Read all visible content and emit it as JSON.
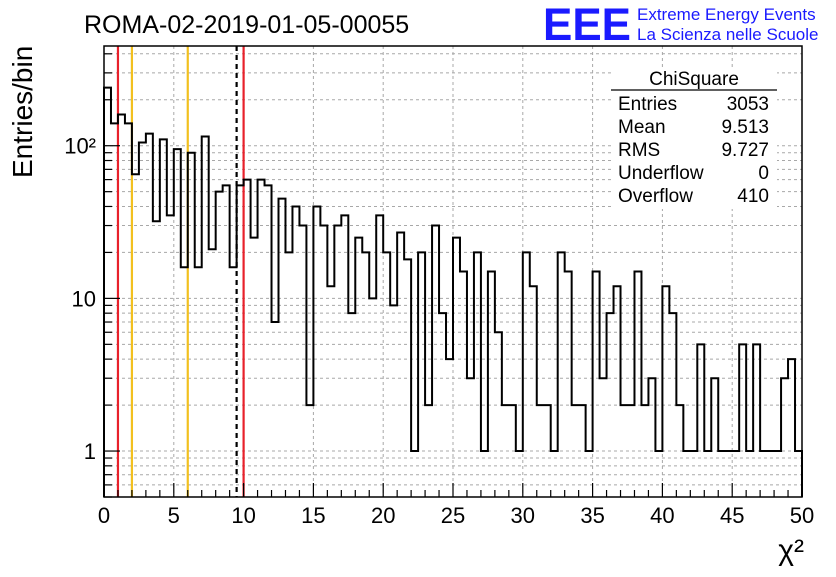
{
  "header": {
    "run_title": "ROMA-02-2019-01-05-00055",
    "logo_text": "EEE",
    "logo_line1": "Extreme Energy Events",
    "logo_line2": "La Scienza nelle Scuole",
    "logo_color": "#1a1aff"
  },
  "stats_box": {
    "title": "ChiSquare",
    "rows": [
      {
        "label": "Entries",
        "value": "3053"
      },
      {
        "label": "Mean",
        "value": "9.513"
      },
      {
        "label": "RMS",
        "value": "9.727"
      },
      {
        "label": "Underflow",
        "value": "0"
      },
      {
        "label": "Overflow",
        "value": "410"
      }
    ]
  },
  "chart_data": {
    "type": "histogram",
    "title": "ROMA-02-2019-01-05-00055",
    "xlabel": "χ²",
    "ylabel": "Entries/bin",
    "xlim": [
      0,
      50
    ],
    "ylim": [
      0.5,
      450
    ],
    "y_scale": "log",
    "grid": true,
    "bin_width": 0.5,
    "x_ticks": [
      "0",
      "5",
      "10",
      "15",
      "20",
      "25",
      "30",
      "35",
      "40",
      "45",
      "50"
    ],
    "y_ticks": [
      {
        "value": 1,
        "label": "1"
      },
      {
        "value": 10,
        "label": "10"
      },
      {
        "value": 100,
        "label": "10²"
      }
    ],
    "values": [
      240,
      140,
      160,
      140,
      65,
      105,
      120,
      32,
      110,
      35,
      95,
      16,
      90,
      16,
      115,
      21,
      50,
      55,
      16,
      55,
      60,
      25,
      60,
      55,
      7,
      45,
      20,
      40,
      30,
      2,
      40,
      30,
      12,
      30,
      35,
      8,
      25,
      20,
      10,
      35,
      20,
      9,
      27,
      18,
      1,
      20,
      2,
      30,
      8,
      4,
      25,
      15,
      3,
      20,
      1,
      15,
      6,
      2,
      2,
      1,
      20,
      12,
      2,
      2,
      1,
      20,
      15,
      2,
      2,
      1,
      15,
      3,
      8,
      12,
      2,
      2,
      15,
      2,
      3,
      1,
      12,
      8,
      2,
      1,
      1,
      5,
      1,
      3,
      1,
      1,
      1,
      5,
      1,
      5,
      1,
      1,
      1,
      3,
      4,
      1
    ],
    "vertical_lines": [
      {
        "x": 1,
        "color": "#e8212b",
        "style": "solid"
      },
      {
        "x": 2,
        "color": "#f2c01f",
        "style": "solid"
      },
      {
        "x": 6,
        "color": "#f2c01f",
        "style": "solid"
      },
      {
        "x": 9.5,
        "color": "#000000",
        "style": "dashed"
      },
      {
        "x": 10,
        "color": "#e8212b",
        "style": "solid"
      }
    ]
  }
}
